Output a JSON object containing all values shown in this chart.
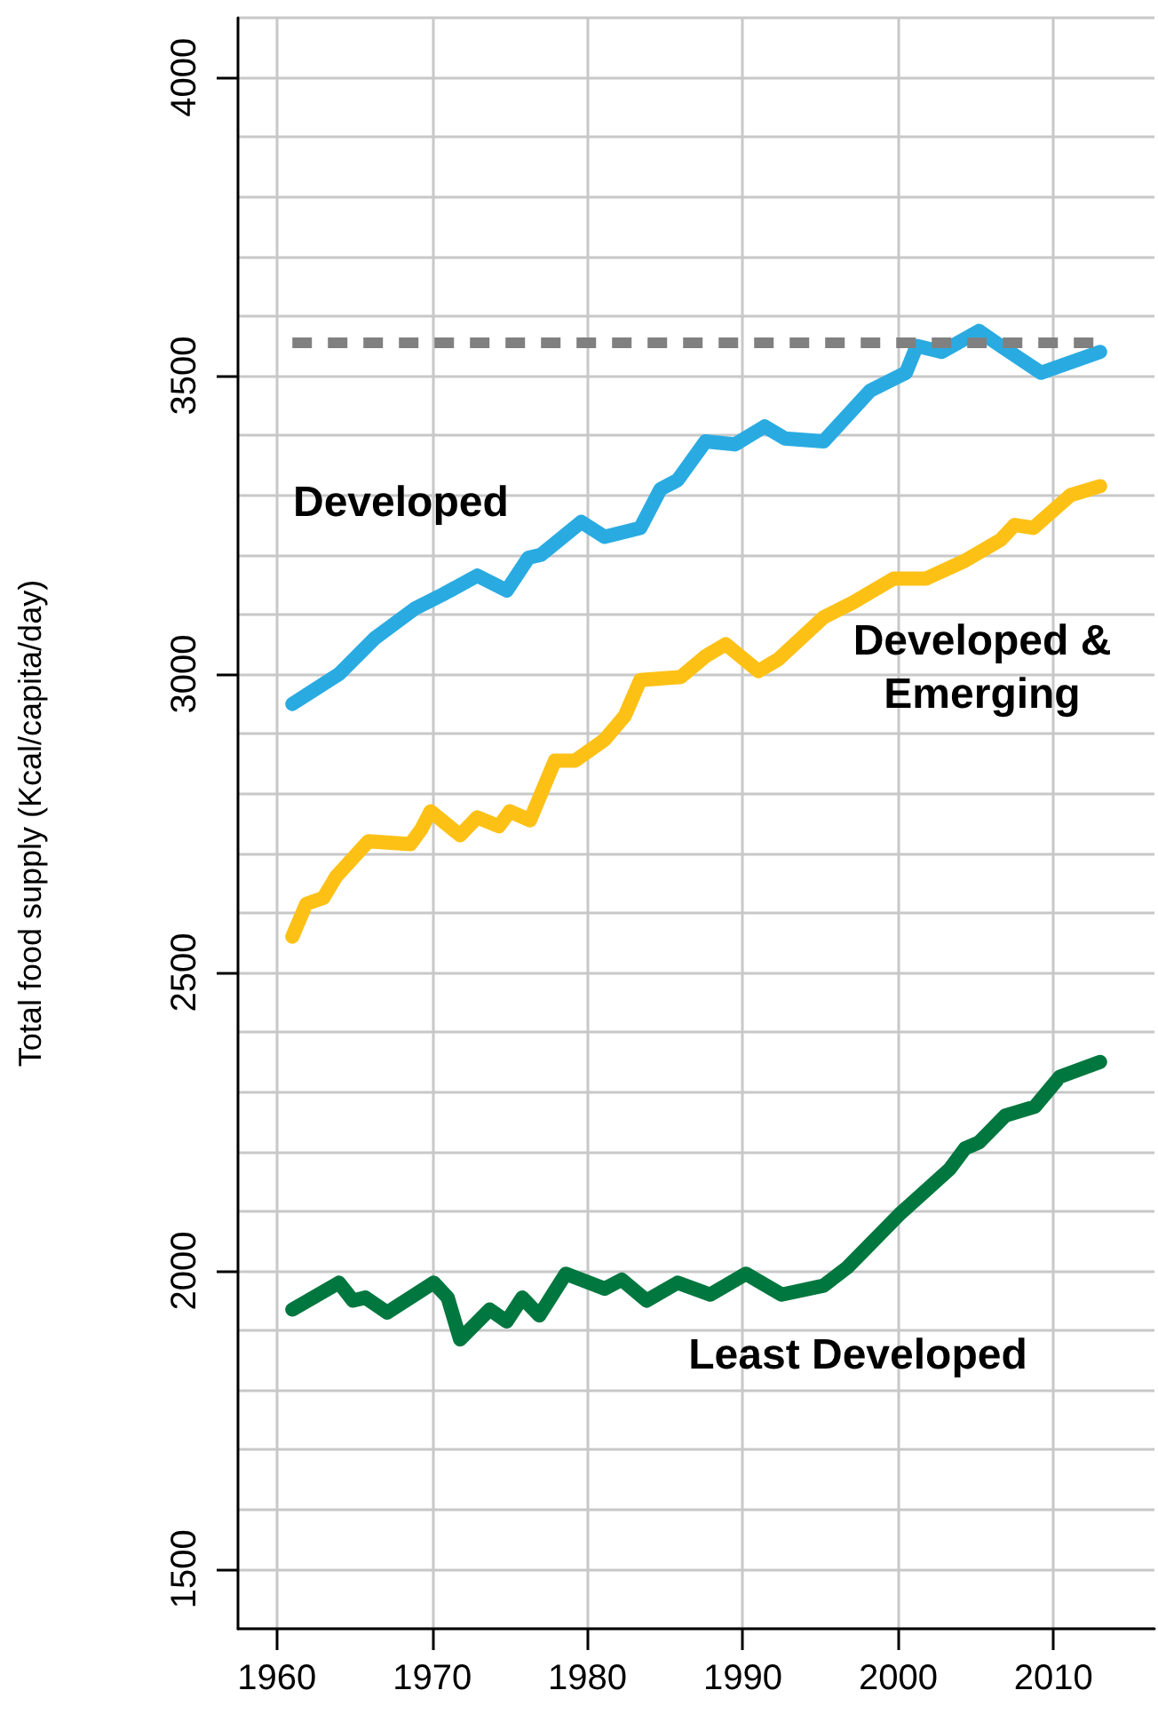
{
  "chart_data": {
    "type": "line",
    "ylabel": "Total food supply (Kcal/capita/day)",
    "xlim": [
      1957.5,
      2016.5
    ],
    "xticks": [
      1960,
      1970,
      1980,
      1990,
      2000,
      2010
    ],
    "ylim": [
      1400,
      4100
    ],
    "yticks": [
      {
        "value": 1400,
        "label": null
      },
      1500,
      {
        "value": 1600,
        "label": null
      },
      {
        "value": 1700,
        "label": null
      },
      {
        "value": 1800,
        "label": null
      },
      {
        "value": 1900,
        "label": null
      },
      2000,
      {
        "value": 2100,
        "label": null
      },
      {
        "value": 2200,
        "label": null
      },
      {
        "value": 2300,
        "label": null
      },
      {
        "value": 2400,
        "label": null
      },
      2500,
      {
        "value": 2600,
        "label": null
      },
      {
        "value": 2700,
        "label": null
      },
      {
        "value": 2800,
        "label": null
      },
      {
        "value": 2900,
        "label": null
      },
      3000,
      {
        "value": 3100,
        "label": null
      },
      {
        "value": 3200,
        "label": null
      },
      {
        "value": 3300,
        "label": null
      },
      {
        "value": 3400,
        "label": null
      },
      3500,
      {
        "value": 3600,
        "label": null
      },
      {
        "value": 3700,
        "label": null
      },
      {
        "value": 3800,
        "label": null
      },
      {
        "value": 3900,
        "label": null
      },
      4000,
      {
        "value": 4100,
        "label": null
      }
    ],
    "grid": true,
    "legend": false,
    "line_style": "solid",
    "ref_lines": [
      {
        "axis": "y",
        "value": 3555,
        "color": "#808080",
        "line_style": "dashed"
      }
    ],
    "series": [
      {
        "name": "Developed",
        "color": "#29abe2",
        "x": [
          1961,
          1964,
          1966.3,
          1968.9,
          1970.8,
          1972.9,
          1974.8,
          1976.2,
          1977,
          1979.6,
          1981.1,
          1983.4,
          1984.7,
          1985.8,
          1987.6,
          1989.5,
          1991.4,
          1992.7,
          1995.2,
          1998.2,
          2000.5,
          2001.2,
          2002.8,
          2005.2,
          2006.6,
          2009.2,
          2013
        ],
        "values": [
          2950,
          3000,
          3060,
          3110,
          3135,
          3165,
          3140,
          3195,
          3200,
          3255,
          3230,
          3245,
          3310,
          3325,
          3390,
          3385,
          3415,
          3395,
          3390,
          3475,
          3505,
          3550,
          3540,
          3575,
          3550,
          3505,
          3540
        ]
      },
      {
        "name": "Developed &\nEmerging",
        "color": "#fdc116",
        "x": [
          1961,
          1961.9,
          1963,
          1963.8,
          1965.9,
          1968.6,
          1969.3,
          1969.9,
          1971.8,
          1972.9,
          1974.3,
          1975,
          1976.3,
          1977.9,
          1979.2,
          1981.1,
          1982.4,
          1983.4,
          1986,
          1987.6,
          1988.9,
          1991,
          1992.3,
          1995.2,
          1997.1,
          1999.7,
          2001.8,
          2004.3,
          2006.6,
          2007.5,
          2008.7,
          2011.1,
          2013
        ],
        "values": [
          2560,
          2615,
          2625,
          2660,
          2720,
          2715,
          2740,
          2770,
          2730,
          2760,
          2745,
          2770,
          2755,
          2855,
          2855,
          2890,
          2930,
          2990,
          2995,
          3030,
          3050,
          3005,
          3025,
          3095,
          3120,
          3160,
          3160,
          3190,
          3225,
          3250,
          3245,
          3300,
          3315
        ]
      },
      {
        "name": "Least Developed",
        "color": "#00773f",
        "x": [
          1961,
          1964,
          1964.9,
          1965.7,
          1967.1,
          1970.1,
          1971,
          1971.8,
          1973.7,
          1974.8,
          1975.8,
          1976.9,
          1978.6,
          1981.1,
          1982.2,
          1983.8,
          1985.8,
          1987.9,
          1990.2,
          1992.5,
          1995.2,
          1996.7,
          2000.1,
          2003.3,
          2004.3,
          2005.2,
          2006.9,
          2008.8,
          2010.4,
          2013
        ],
        "values": [
          1935,
          1980,
          1950,
          1955,
          1930,
          1980,
          1955,
          1885,
          1935,
          1915,
          1955,
          1925,
          1995,
          1970,
          1985,
          1950,
          1980,
          1960,
          1995,
          1960,
          1975,
          2005,
          2095,
          2170,
          2205,
          2215,
          2260,
          2275,
          2325,
          2350
        ]
      }
    ]
  }
}
